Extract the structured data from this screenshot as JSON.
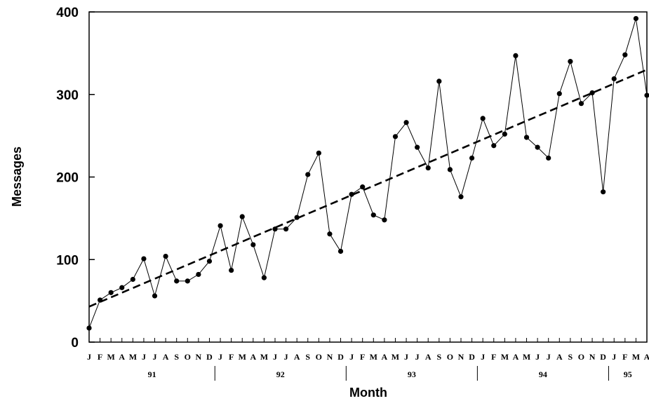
{
  "chart_data": {
    "type": "line",
    "title": "",
    "xlabel": "Month",
    "ylabel": "Messages",
    "ylim": [
      0,
      400
    ],
    "yticks": [
      0,
      100,
      200,
      300,
      400
    ],
    "month_labels": [
      "J",
      "F",
      "M",
      "A",
      "M",
      "J",
      "J",
      "A",
      "S",
      "O",
      "N",
      "D",
      "J",
      "F",
      "M",
      "A",
      "M",
      "J",
      "J",
      "A",
      "S",
      "O",
      "N",
      "D",
      "J",
      "F",
      "M",
      "A",
      "M",
      "J",
      "J",
      "A",
      "S",
      "O",
      "N",
      "D",
      "J",
      "F",
      "M",
      "A",
      "M",
      "J",
      "J",
      "A",
      "S",
      "O",
      "N",
      "D",
      "J",
      "F",
      "M",
      "A"
    ],
    "year_labels": [
      {
        "label": "91",
        "start": 0,
        "end": 12
      },
      {
        "label": "92",
        "start": 12,
        "end": 24
      },
      {
        "label": "93",
        "start": 24,
        "end": 36
      },
      {
        "label": "94",
        "start": 36,
        "end": 48
      },
      {
        "label": "95",
        "start": 48,
        "end": 52
      }
    ],
    "series": [
      {
        "values": [
          17,
          51,
          60,
          66,
          76,
          101,
          56,
          104,
          74,
          74,
          82,
          98,
          141,
          87,
          152,
          118,
          78,
          137,
          137,
          151,
          203,
          229,
          131,
          110,
          179,
          188,
          154,
          148,
          249,
          266,
          236,
          211,
          316,
          209,
          176,
          223,
          271,
          238,
          252,
          347,
          248,
          236,
          223,
          301,
          340,
          289,
          302,
          182,
          319,
          348,
          392,
          299
        ],
        "marker": "circle",
        "color": "#000000"
      }
    ],
    "trend": {
      "start": 43,
      "end": 330,
      "style": "dashed",
      "color": "#000000"
    },
    "grid": false
  }
}
